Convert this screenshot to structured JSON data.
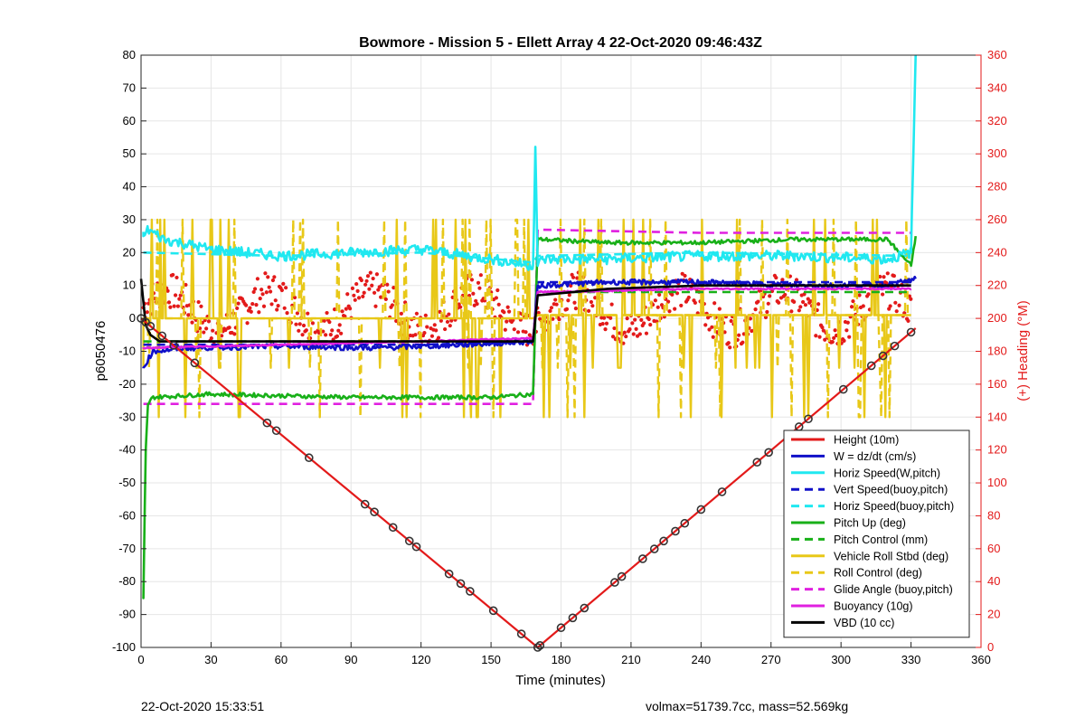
{
  "chart_data": {
    "type": "line",
    "title": "Bowmore - Mission 5 - Ellett Array 4 22-Oct-2020 09:46:43Z",
    "xlabel": "Time (minutes)",
    "ylabel": "p6050476",
    "y2label": "(+) Heading (°M)",
    "xlim": [
      0,
      360
    ],
    "ylim": [
      -100,
      80
    ],
    "y2lim": [
      0,
      360
    ],
    "xticks": [
      0,
      30,
      60,
      90,
      120,
      150,
      180,
      210,
      240,
      270,
      300,
      330,
      360
    ],
    "yticks": [
      -100,
      -90,
      -80,
      -70,
      -60,
      -50,
      -40,
      -30,
      -20,
      -10,
      0,
      10,
      20,
      30,
      40,
      50,
      60,
      70,
      80
    ],
    "y2ticks": [
      0,
      20,
      40,
      60,
      80,
      100,
      120,
      140,
      160,
      180,
      200,
      220,
      240,
      260,
      280,
      300,
      320,
      340,
      360
    ],
    "grid": true,
    "legend_location": "bottom-right",
    "colors": {
      "red": "#e31a1a",
      "blue": "#1010c8",
      "cyan": "#20e8f0",
      "green": "#18b018",
      "yellow": "#e8c818",
      "magenta": "#e020e0",
      "black": "#000000",
      "heading_axis": "#e31a1a"
    },
    "series": [
      {
        "name": "Height (10m)",
        "style": "solid",
        "color": "red",
        "x": [
          0,
          170,
          332
        ],
        "values": [
          0,
          -100,
          -3
        ]
      },
      {
        "name": "W = dz/dt (cm/s)",
        "style": "solid",
        "color": "blue",
        "x": [
          1,
          5,
          20,
          60,
          100,
          140,
          168,
          170,
          172,
          200,
          240,
          280,
          320,
          332
        ],
        "values": [
          -15,
          -10,
          -9,
          -8.5,
          -9,
          -8,
          -7,
          10,
          10,
          11,
          11,
          10,
          10,
          12
        ]
      },
      {
        "name": "Horiz Speed(W,pitch)",
        "style": "solid",
        "color": "cyan",
        "x": [
          1,
          3,
          10,
          30,
          60,
          90,
          120,
          150,
          168,
          169,
          170,
          172,
          200,
          240,
          280,
          320,
          330,
          332
        ],
        "values": [
          25,
          27,
          24,
          21,
          19,
          20,
          21,
          18,
          16,
          52,
          16,
          18,
          18,
          19,
          19,
          18,
          20,
          80
        ]
      },
      {
        "name": "Vert Speed(buoy,pitch)",
        "style": "dashed",
        "color": "blue",
        "x": [
          1,
          60,
          120,
          168,
          170,
          240,
          330
        ],
        "values": [
          -8,
          -8,
          -8,
          -7,
          11,
          11,
          11
        ]
      },
      {
        "name": "Horiz Speed(buoy,pitch)",
        "style": "dashed",
        "color": "cyan",
        "x": [
          1,
          60,
          120,
          168,
          170,
          240,
          330
        ],
        "values": [
          20,
          19,
          20,
          17,
          19,
          20,
          19
        ]
      },
      {
        "name": "Pitch Up (deg)",
        "style": "solid",
        "color": "green",
        "x": [
          1,
          2,
          3,
          5,
          30,
          90,
          150,
          168,
          170,
          172,
          200,
          240,
          280,
          320,
          330,
          332
        ],
        "values": [
          -85,
          -40,
          -26,
          -24,
          -23,
          -24,
          -24,
          -23,
          24,
          24,
          23,
          23,
          24,
          24,
          16,
          25
        ]
      },
      {
        "name": "Pitch Control (mm)",
        "style": "dashed",
        "color": "green",
        "x": [
          1,
          60,
          120,
          168,
          170,
          240,
          330
        ],
        "values": [
          -7,
          -7,
          -7,
          -7,
          8,
          8,
          8
        ]
      },
      {
        "name": "Vehicle Roll Stbd (deg)",
        "style": "solid",
        "color": "yellow",
        "x": [
          1,
          60,
          120,
          168,
          170,
          240,
          330
        ],
        "values": [
          0,
          0,
          0,
          0,
          1,
          1,
          1
        ]
      },
      {
        "name": "Roll Control (deg)",
        "style": "dashed",
        "color": "yellow",
        "x": [
          1,
          60,
          120,
          168,
          170,
          240,
          330
        ],
        "values": [
          0,
          0,
          0,
          0,
          1,
          1,
          1
        ]
      },
      {
        "name": "Glide Angle (buoy,pitch)",
        "style": "dashed",
        "color": "magenta",
        "x": [
          1,
          60,
          120,
          168,
          170,
          240,
          330
        ],
        "values": [
          -26,
          -26,
          -26,
          -26,
          27,
          26,
          26
        ]
      },
      {
        "name": "Buoyancy (10g)",
        "style": "solid",
        "color": "magenta",
        "x": [
          1,
          60,
          120,
          168,
          170,
          240,
          330
        ],
        "values": [
          -9,
          -8,
          -7,
          -6,
          8,
          9,
          9
        ]
      },
      {
        "name": "VBD (10 cc)",
        "style": "solid",
        "color": "black",
        "x": [
          0,
          2,
          4,
          8,
          168,
          170,
          200,
          240,
          330
        ],
        "values": [
          12,
          -2,
          -5,
          -7,
          -7,
          7,
          9,
          10,
          10
        ]
      }
    ],
    "heading_dots": {
      "color": "red",
      "axis": "right",
      "values_range": [
        180,
        230
      ]
    },
    "markers_on_height": {
      "x": [
        0,
        2,
        4,
        9,
        14,
        23,
        54,
        58,
        72,
        96,
        100,
        108,
        115,
        118,
        132,
        137,
        141,
        151,
        163,
        170,
        171,
        180,
        185,
        190,
        203,
        206,
        215,
        220,
        224,
        229,
        233,
        240,
        249,
        264,
        269,
        282,
        286,
        301,
        313,
        318,
        323,
        330
      ]
    }
  },
  "footer": {
    "left": "22-Oct-2020 15:33:51",
    "right": "volmax=51739.7cc, mass=52.569kg"
  }
}
